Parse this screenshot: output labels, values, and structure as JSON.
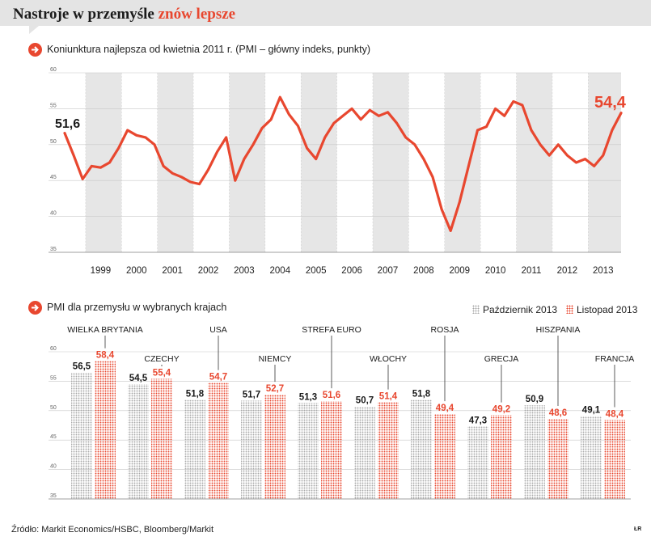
{
  "header": {
    "title_main": "Nastroje w przemyśle ",
    "title_highlight": "znów lepsze"
  },
  "colors": {
    "accent": "#e8472f",
    "grey_dots": "#a9a9a9",
    "band": "#e6e6e6"
  },
  "chart1": {
    "icon": "arrow-right-icon",
    "subtitle": "Koniunktura najlepsza od kwietnia 2011 r. (PMI – główny indeks, punkty)",
    "first_label": "51,6",
    "last_label": "54,4"
  },
  "chart2": {
    "icon": "arrow-right-icon",
    "subtitle": "PMI dla przemysłu w wybranych krajach",
    "legend_oct": "Październik 2013",
    "legend_nov": "Listopad 2013"
  },
  "footer": {
    "source": "Źródło: Markit Economics/HSBC, Bloomberg/Markit",
    "credit": "ŁR"
  },
  "chart_data": [
    {
      "type": "line",
      "title": "Koniunktura najlepsza od kwietnia 2011 r. (PMI – główny indeks, punkty)",
      "ylim": [
        35,
        60
      ],
      "yticks": [
        35,
        40,
        45,
        50,
        55,
        60
      ],
      "x_tick_labels": [
        "1999",
        "2000",
        "2001",
        "2002",
        "2003",
        "2004",
        "2005",
        "2006",
        "2007",
        "2008",
        "2009",
        "2010",
        "2011",
        "2012",
        "2013"
      ],
      "x_range": [
        "1998-06",
        "2013-12"
      ],
      "grid": true,
      "x": [
        "1998-06",
        "1998-09",
        "1998-12",
        "1999-03",
        "1999-06",
        "1999-09",
        "1999-12",
        "2000-03",
        "2000-06",
        "2000-09",
        "2000-12",
        "2001-03",
        "2001-06",
        "2001-09",
        "2001-12",
        "2002-03",
        "2002-06",
        "2002-09",
        "2002-12",
        "2003-03",
        "2003-06",
        "2003-09",
        "2003-12",
        "2004-03",
        "2004-06",
        "2004-09",
        "2004-12",
        "2005-03",
        "2005-06",
        "2005-09",
        "2005-12",
        "2006-03",
        "2006-06",
        "2006-09",
        "2006-12",
        "2007-03",
        "2007-06",
        "2007-09",
        "2007-12",
        "2008-03",
        "2008-06",
        "2008-09",
        "2008-12",
        "2009-03",
        "2009-06",
        "2009-09",
        "2009-12",
        "2010-03",
        "2010-06",
        "2010-09",
        "2010-12",
        "2011-03",
        "2011-06",
        "2011-09",
        "2011-12",
        "2012-03",
        "2012-06",
        "2012-09",
        "2012-12",
        "2013-03",
        "2013-06",
        "2013-09",
        "2013-12"
      ],
      "values": [
        51.6,
        48.5,
        45.2,
        47.0,
        46.8,
        47.5,
        49.5,
        52.0,
        51.3,
        51.0,
        50.0,
        47.0,
        46.0,
        45.5,
        44.8,
        44.5,
        46.5,
        49.0,
        51.0,
        45.0,
        48.0,
        50.0,
        52.3,
        53.5,
        56.6,
        54.2,
        52.6,
        49.5,
        48.0,
        51.0,
        53.0,
        54.0,
        55.0,
        53.5,
        54.8,
        54.0,
        54.5,
        53.0,
        51.0,
        50.0,
        48.0,
        45.5,
        41.0,
        38.0,
        42.0,
        47.0,
        52.0,
        52.5,
        55.0,
        54.0,
        56.0,
        55.5,
        52.0,
        50.0,
        48.5,
        50.0,
        48.5,
        47.5,
        48.0,
        47.0,
        48.5,
        52.0,
        54.4
      ],
      "series": [
        {
          "values_ref": "values"
        }
      ]
    },
    {
      "type": "bar",
      "title": "PMI dla przemysłu w wybranych krajach",
      "ylim": [
        35,
        60
      ],
      "yticks": [
        35,
        40,
        45,
        50,
        55,
        60
      ],
      "categories": [
        "WIELKA BRYTANIA",
        "CZECHY",
        "USA",
        "NIEMCY",
        "STREFA EURO",
        "WŁOCHY",
        "ROSJA",
        "GRECJA",
        "HISZPANIA",
        "FRANCJA"
      ],
      "series": [
        {
          "name": "Październik 2013",
          "values": [
            56.5,
            54.5,
            51.8,
            51.7,
            51.3,
            50.7,
            51.8,
            47.3,
            50.9,
            49.1
          ],
          "labels": [
            "56,5",
            "54,5",
            "51,8",
            "51,7",
            "51,3",
            "50,7",
            "51,8",
            "47,3",
            "50,9",
            "49,1"
          ]
        },
        {
          "name": "Listopad 2013",
          "values": [
            58.4,
            55.4,
            54.7,
            52.7,
            51.6,
            51.4,
            49.4,
            49.2,
            48.6,
            48.4
          ],
          "labels": [
            "58,4",
            "55,4",
            "54,7",
            "52,7",
            "51,6",
            "51,4",
            "49,4",
            "49,2",
            "48,6",
            "48,4"
          ]
        }
      ],
      "legend": "top-right",
      "grid": true
    }
  ]
}
